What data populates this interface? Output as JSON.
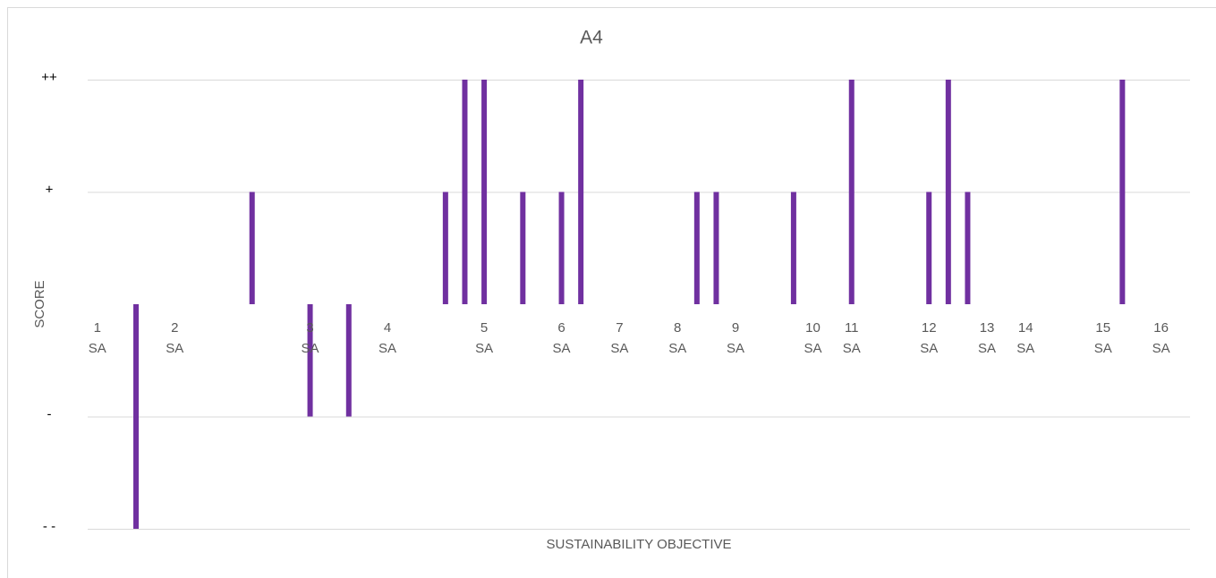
{
  "chart_data": {
    "type": "bar",
    "title": "A4",
    "x_label": "SUSTAINABILITY OBJECTIVE",
    "y_label": "SCORE",
    "categories": [
      "1 SA",
      null,
      null,
      null,
      "2 SA",
      null,
      null,
      null,
      null,
      null,
      null,
      "3 SA",
      null,
      null,
      null,
      "4 SA",
      null,
      null,
      null,
      null,
      "5 SA",
      null,
      null,
      null,
      "6 SA",
      null,
      null,
      "7 SA",
      null,
      null,
      "8 SA",
      null,
      null,
      "9 SA",
      null,
      null,
      null,
      "10 SA",
      null,
      "11 SA",
      null,
      null,
      null,
      "12 SA",
      null,
      null,
      "13 SA",
      null,
      "14 SA",
      null,
      null,
      null,
      "15 SA",
      null,
      null,
      "16 SA",
      null
    ],
    "values": [
      null,
      null,
      -2,
      null,
      null,
      null,
      null,
      null,
      1,
      null,
      null,
      -1,
      null,
      -1,
      null,
      null,
      null,
      null,
      1,
      2,
      2,
      null,
      1,
      null,
      1,
      2,
      null,
      null,
      null,
      null,
      null,
      1,
      1,
      null,
      null,
      null,
      1,
      null,
      null,
      2,
      null,
      null,
      null,
      1,
      2,
      1,
      null,
      null,
      null,
      null,
      null,
      null,
      null,
      2,
      null,
      null,
      null
    ],
    "color": "#7030a0",
    "ylim": [
      -2,
      2
    ],
    "yticks": [
      {
        "value": -2,
        "label": "- -"
      },
      {
        "value": -1,
        "label": "-"
      },
      {
        "value": 1,
        "label": "+"
      },
      {
        "value": 2,
        "label": "++"
      }
    ],
    "grid": true
  }
}
